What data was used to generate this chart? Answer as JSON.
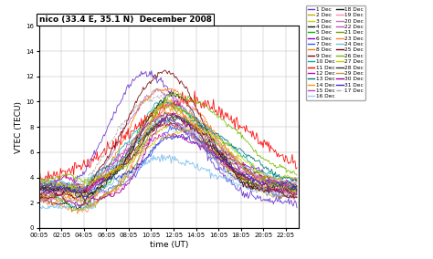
{
  "title": "nico (33.4 E, 35.1 N)  December 2008",
  "xlabel": "time (UT)",
  "ylabel": "VTEC (TECU)",
  "xlim": [
    0.083,
    23.25
  ],
  "ylim": [
    0,
    16
  ],
  "yticks": [
    0,
    2,
    4,
    6,
    8,
    10,
    12,
    14,
    16
  ],
  "xtick_labels": [
    "00:05",
    "02:05",
    "04:05",
    "06:05",
    "08:05",
    "10:05",
    "12:05",
    "14:05",
    "16:05",
    "18:05",
    "20:05",
    "22:05"
  ],
  "xtick_positions": [
    0.083,
    2.083,
    4.083,
    6.083,
    8.083,
    10.083,
    12.083,
    14.083,
    16.083,
    18.083,
    20.083,
    22.083
  ],
  "days": [
    1,
    2,
    3,
    4,
    5,
    6,
    7,
    8,
    9,
    10,
    11,
    12,
    13,
    14,
    15,
    16,
    17,
    18,
    19,
    20,
    21,
    22,
    23,
    24,
    25,
    26,
    27,
    28,
    29,
    30,
    31
  ],
  "colors": {
    "1": "#6633cc",
    "2": "#ccaa00",
    "3": "#cccc00",
    "4": "#111111",
    "5": "#00bb00",
    "6": "#8800cc",
    "7": "#3355ff",
    "8": "#ff7700",
    "9": "#880000",
    "10": "#00aaaa",
    "11": "#ff0000",
    "12": "#cc00bb",
    "13": "#007777",
    "14": "#ff9900",
    "15": "#bb44bb",
    "16": "#99ccff",
    "17": "#aaaaaa",
    "18": "#111111",
    "19": "#ff88bb",
    "20": "#bb77bb",
    "21": "#779900",
    "22": "#bb55bb",
    "23": "#ff8833",
    "24": "#77bbee",
    "25": "#770000",
    "26": "#77bb00",
    "27": "#cccc00",
    "28": "#333333",
    "29": "#bb9933",
    "30": "#990099",
    "31": "#3333bb"
  },
  "linestyles": {
    "17": "--"
  },
  "legend_order": [
    1,
    2,
    3,
    4,
    5,
    6,
    7,
    8,
    9,
    10,
    11,
    12,
    13,
    14,
    15,
    16,
    18,
    19,
    20,
    22,
    21,
    23,
    24,
    25,
    26,
    27,
    28,
    29,
    30,
    31,
    17
  ],
  "background": "#ffffff"
}
